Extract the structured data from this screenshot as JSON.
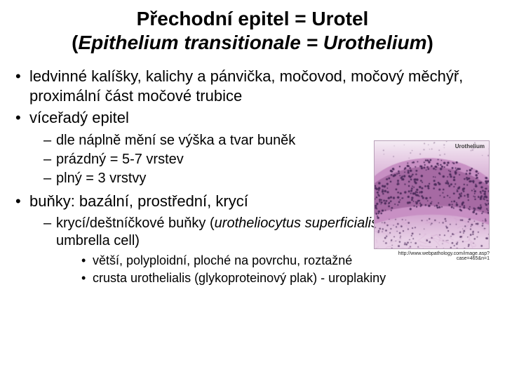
{
  "title": {
    "line1": "Přechodní epitel = Urotel",
    "line2_open": "(",
    "line2_text": "Epithelium transitionale = Urothelium",
    "line2_close": ")"
  },
  "bullets": {
    "b1": "ledvinné kalíšky, kalichy a pánvička, močovod, močový měchýř, proximální část močové trubice",
    "b2": "víceřadý epitel",
    "b2_sub1": "dle náplně mění se výška a tvar buněk",
    "b2_sub2": "prázdný = 5-7 vrstev",
    "b2_sub3": "plný = 3 vrstvy",
    "b3": "buňky: bazální, prostřední, krycí",
    "b3_sub1_plain1": "krycí/deštníčkové buňky (",
    "b3_sub1_italic": "urotheliocytus superficialis; umbellocytus",
    "b3_sub1_plain2": "; umbrella cell)",
    "b3_sub1_sub1": "větší, polyploidní, ploché na povrchu, roztažné",
    "b3_sub1_sub2": "crusta urothelialis (glykoproteinový plak) - uroplakiny"
  },
  "image": {
    "label": "Urothelium",
    "caption": "http://www.webpathology.com/image.asp?case=465&n=1",
    "width": 165,
    "height": 155,
    "colors": {
      "light": "#e8d0e6",
      "mid": "#c890c4",
      "dark": "#8a4a88",
      "nucleus": "#4a2a5a",
      "border": "#b8a0b8"
    }
  },
  "style": {
    "page_bg": "#ffffff",
    "text_color": "#000000",
    "title_fontsize": 28,
    "l1_fontsize": 22,
    "l2_fontsize": 20,
    "l3_fontsize": 18
  }
}
